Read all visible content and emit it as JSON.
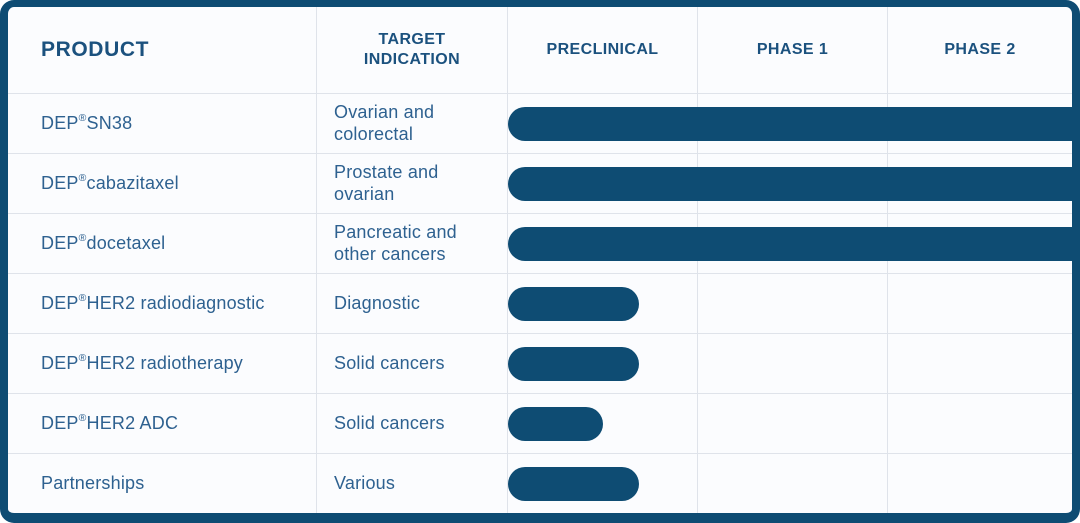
{
  "table": {
    "columns": [
      {
        "label": "PRODUCT"
      },
      {
        "label": "TARGET INDICATION"
      },
      {
        "label": "PRECLINICAL"
      },
      {
        "label": "PHASE 1"
      },
      {
        "label": "PHASE 2"
      }
    ]
  },
  "chart_data": {
    "type": "bar",
    "orientation": "horizontal",
    "stages": [
      "PRECLINICAL",
      "PHASE 1",
      "PHASE 2"
    ],
    "rows": [
      {
        "product": "DEP® SN38",
        "indication": "Ovarian and colorectal",
        "stage_reached": "Phase 2",
        "extent_columns": 3.0
      },
      {
        "product": "DEP® cabazitaxel",
        "indication": "Prostate and ovarian",
        "stage_reached": "Phase 2",
        "extent_columns": 3.0
      },
      {
        "product": "DEP® docetaxel",
        "indication": "Pancreatic and other cancers",
        "stage_reached": "Phase 2",
        "extent_columns": 3.0
      },
      {
        "product": "DEP® HER2 radiodiagnostic",
        "indication": "Diagnostic",
        "stage_reached": "Preclinical",
        "extent_columns": 0.69
      },
      {
        "product": "DEP® HER2 radiotherapy",
        "indication": "Solid cancers",
        "stage_reached": "Preclinical",
        "extent_columns": 0.69
      },
      {
        "product": "DEP® HER2 ADC",
        "indication": "Solid cancers",
        "stage_reached": "Preclinical",
        "extent_columns": 0.5
      },
      {
        "product": "Partnerships",
        "indication": "Various",
        "stage_reached": "Preclinical",
        "extent_columns": 0.69
      }
    ]
  },
  "colors": {
    "bar": "#0e4c73",
    "outer_border": "#0e4c73",
    "header_text": "#1b517e",
    "body_text": "#2e6190",
    "background": "#fbfcfe",
    "gridline": "#dfe3ea"
  }
}
